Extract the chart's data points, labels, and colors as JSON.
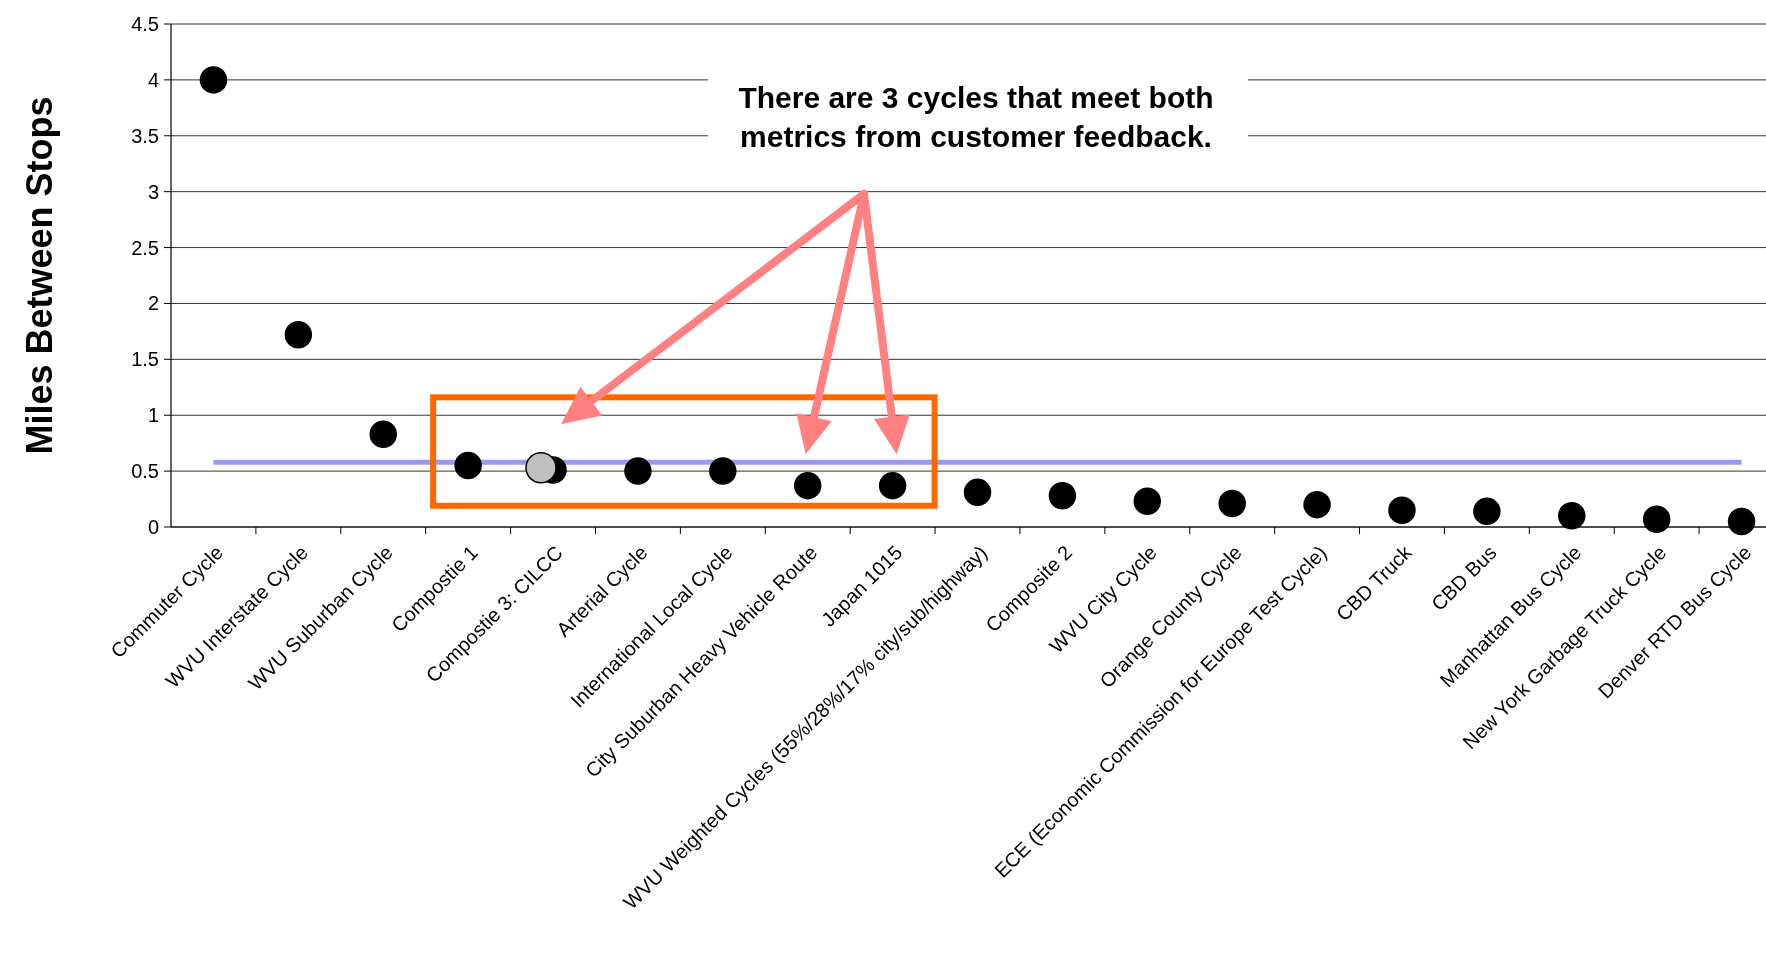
{
  "chart_data": {
    "type": "scatter",
    "ylabel": "Miles Between Stops",
    "categories": [
      "Commuter Cycle",
      "WVU Interstate Cycle",
      "WVU Suburban Cycle",
      "Compostie 1",
      "Compostie 3: CILCC",
      "Arterial Cycle",
      "International Local Cycle",
      "City Suburban Heavy Vehicle Route",
      "Japan 1015",
      "WVU Weighted Cycles (55%/28%/17% city/sub/highway)",
      "Composite 2",
      "WVU City Cycle",
      "Orange County Cycle",
      "ECE (Economic Commission for Europe Test Cycle)",
      "CBD Truck",
      "CBD Bus",
      "Manhattan Bus Cycle",
      "New York Garbage Truck Cycle",
      "Denver RTD Bus Cycle"
    ],
    "series": [
      {
        "color": "#000000",
        "values": [
          4.0,
          1.72,
          0.83,
          0.55,
          0.51,
          0.5,
          0.5,
          0.37,
          0.37,
          0.31,
          0.28,
          0.23,
          0.21,
          0.2,
          0.15,
          0.14,
          0.1,
          0.07,
          0.05
        ]
      },
      {
        "color": "#c0c0c0",
        "x": [
          "Compostie 3: CILCC"
        ],
        "values": [
          0.53
        ]
      }
    ],
    "ylim": [
      0,
      4.5
    ],
    "yticks": [
      0,
      0.5,
      1,
      1.5,
      2,
      2.5,
      3,
      3.5,
      4,
      4.5
    ],
    "grid": "y",
    "marker": "circle",
    "ref_lines": [
      {
        "axis": "y",
        "value": 0.58,
        "color": "#9999ee"
      }
    ],
    "annotations": [
      "There are 3 cycles that meet both metrics from customer feedback."
    ]
  }
}
